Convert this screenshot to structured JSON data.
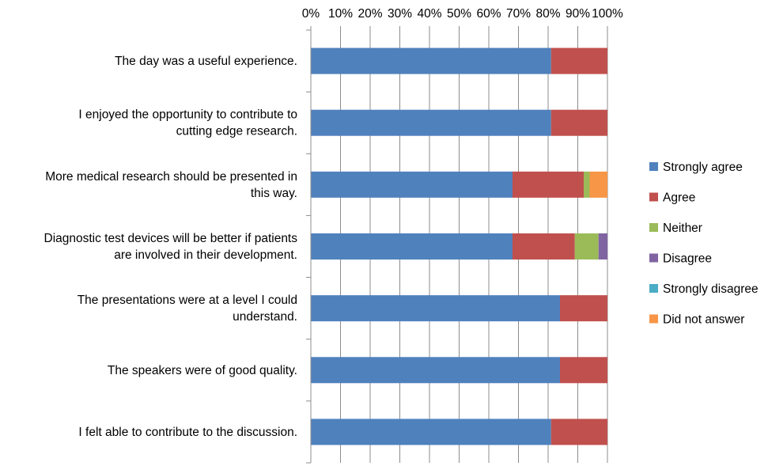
{
  "chart_data": {
    "type": "bar",
    "orientation": "horizontal",
    "stacked": "percent",
    "categories": [
      [
        "The day was a useful experience."
      ],
      [
        "I enjoyed the opportunity to contribute to",
        "cutting edge research."
      ],
      [
        "More medical research should be presented in",
        "this way."
      ],
      [
        "Diagnostic test devices will be better if patients",
        "are involved in their development."
      ],
      [
        "The presentations were at a level I could",
        "understand."
      ],
      [
        "The speakers were of good quality."
      ],
      [
        "I felt able to contribute to the discussion."
      ]
    ],
    "series": [
      {
        "name": "Strongly agree",
        "color": "#4f81bd",
        "values": [
          81,
          81,
          68,
          68,
          84,
          84,
          81
        ]
      },
      {
        "name": "Agree",
        "color": "#c0504d",
        "values": [
          19,
          19,
          24,
          21,
          16,
          16,
          19
        ]
      },
      {
        "name": "Neither",
        "color": "#9bbb59",
        "values": [
          0,
          0,
          2,
          8,
          0,
          0,
          0
        ]
      },
      {
        "name": "Disagree",
        "color": "#8064a2",
        "values": [
          0,
          0,
          0,
          3,
          0,
          0,
          0
        ]
      },
      {
        "name": "Strongly disagree",
        "color": "#4bacc6",
        "values": [
          0,
          0,
          0,
          0,
          0,
          0,
          0
        ]
      },
      {
        "name": "Did not answer",
        "color": "#f79646",
        "values": [
          0,
          0,
          6,
          0,
          0,
          0,
          0
        ]
      }
    ],
    "ticks": [
      "0%",
      "10%",
      "20%",
      "30%",
      "40%",
      "50%",
      "60%",
      "70%",
      "80%",
      "90%",
      "100%"
    ],
    "xlim": [
      0,
      100
    ],
    "axis_position": "top",
    "grid": true,
    "legend_position": "right"
  }
}
